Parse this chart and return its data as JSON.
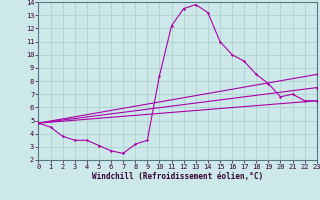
{
  "background_color": "#cce8e8",
  "grid_color": "#aacccc",
  "line_color": "#aa00aa",
  "xlim": [
    0,
    23
  ],
  "ylim": [
    2,
    14
  ],
  "xticks": [
    0,
    1,
    2,
    3,
    4,
    5,
    6,
    7,
    8,
    9,
    10,
    11,
    12,
    13,
    14,
    15,
    16,
    17,
    18,
    19,
    20,
    21,
    22,
    23
  ],
  "yticks": [
    2,
    3,
    4,
    5,
    6,
    7,
    8,
    9,
    10,
    11,
    12,
    13,
    14
  ],
  "xlabel": "Windchill (Refroidissement éolien,°C)",
  "series": [
    {
      "x": [
        0,
        1,
        2,
        3,
        4,
        5,
        6,
        7,
        8,
        9,
        10,
        11,
        12,
        13,
        14,
        15,
        16,
        17,
        18,
        19,
        20,
        21,
        22,
        23
      ],
      "y": [
        4.8,
        4.5,
        3.8,
        3.5,
        3.5,
        3.1,
        2.7,
        2.5,
        3.2,
        3.5,
        8.4,
        12.2,
        13.5,
        13.8,
        13.2,
        11.0,
        10.0,
        9.5,
        8.5,
        7.8,
        6.8,
        7.0,
        6.5,
        6.5
      ]
    },
    {
      "x": [
        0,
        23
      ],
      "y": [
        4.8,
        6.5
      ]
    },
    {
      "x": [
        0,
        23
      ],
      "y": [
        4.8,
        7.5
      ]
    },
    {
      "x": [
        0,
        23
      ],
      "y": [
        4.8,
        8.5
      ]
    }
  ]
}
